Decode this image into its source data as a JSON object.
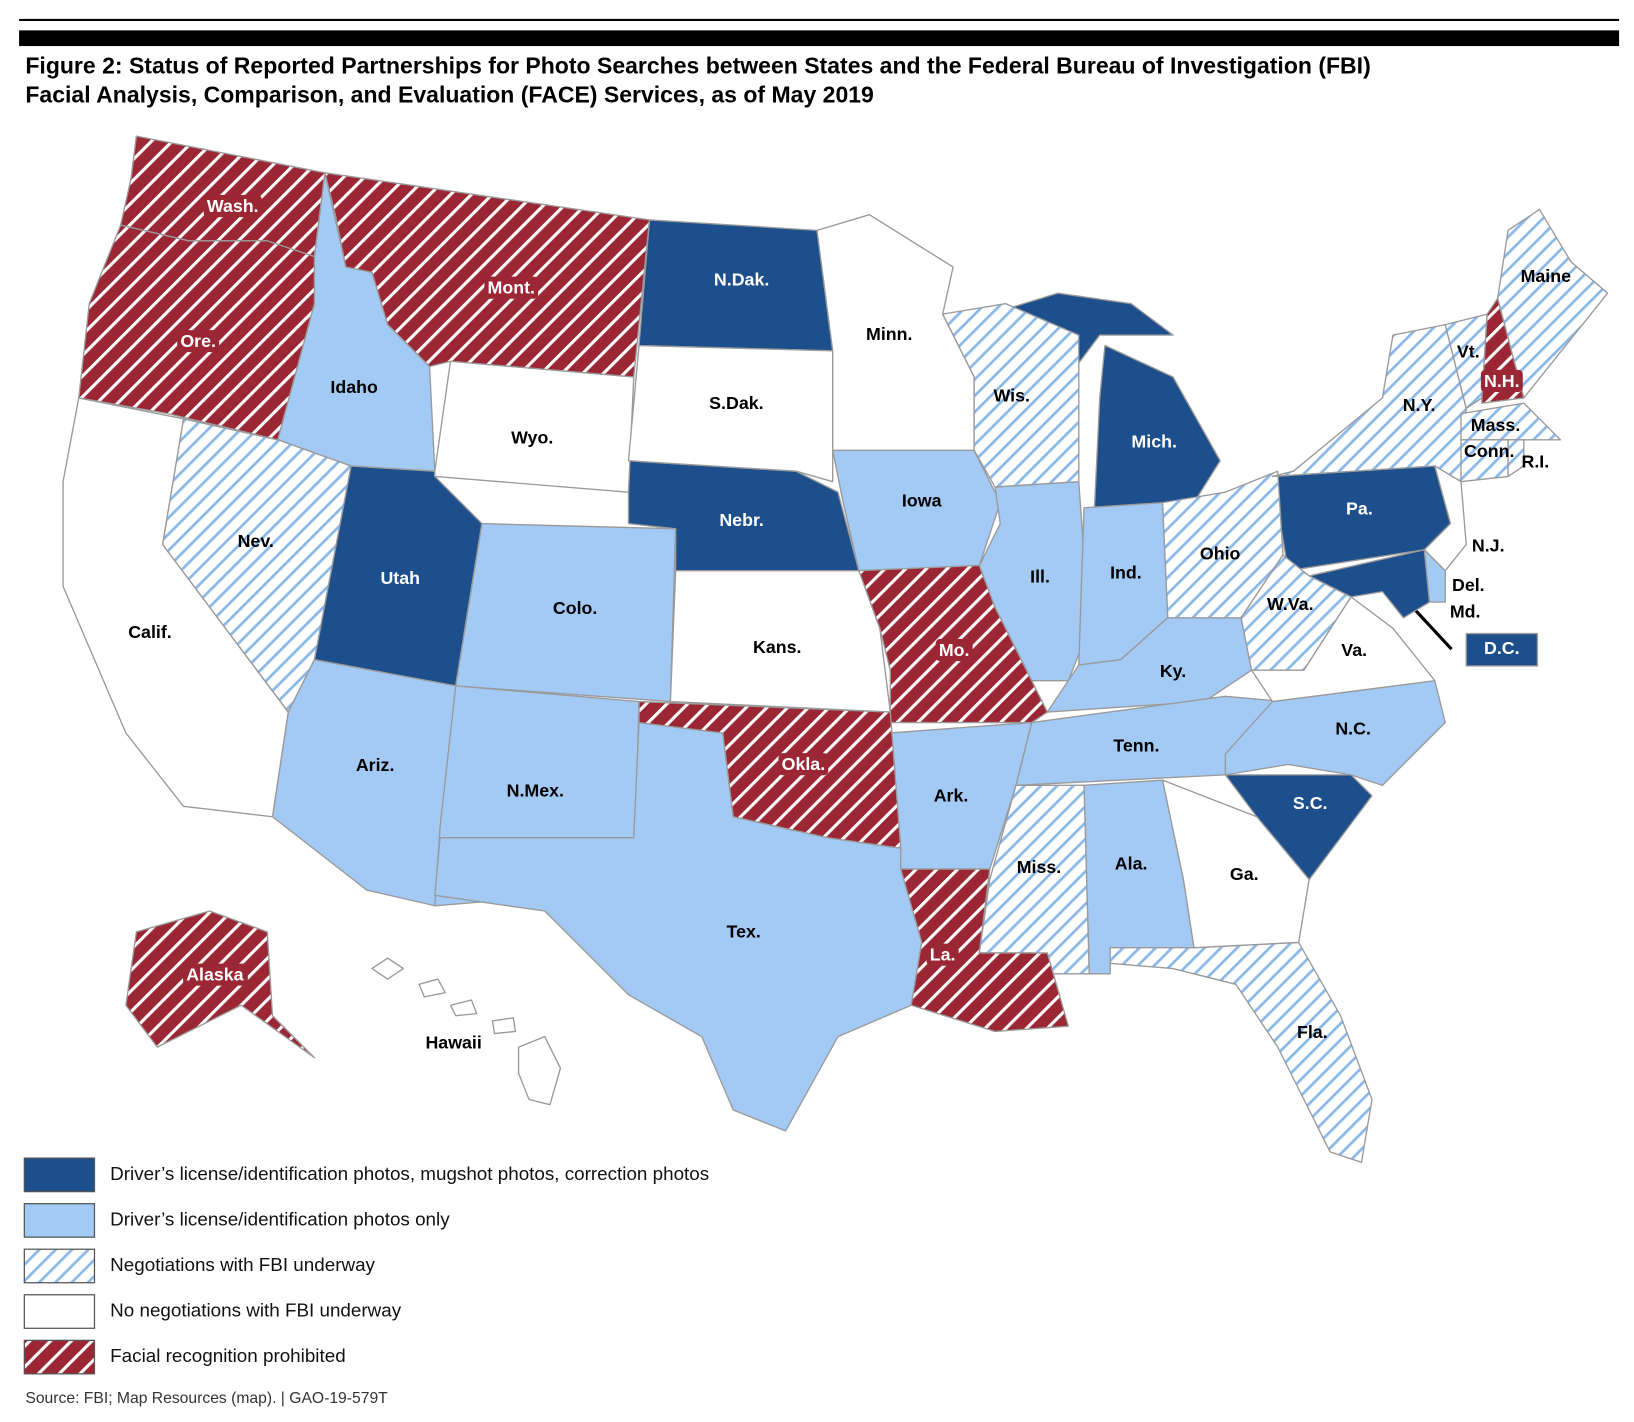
{
  "title": [
    "Figure 2: Status of Reported Partnerships for Photo Searches between States and the Federal Bureau of Investigation (FBI)",
    "Facial Analysis, Comparison, and Evaluation (FACE) Services, as of May 2019"
  ],
  "legend": [
    {
      "label": "Driver’s license/identification photos, mugshot photos, correction photos",
      "states": [
        "N.Dak.",
        "Nebr.",
        "Utah",
        "Mich.",
        "Pa.",
        "S.C.",
        "Md.",
        "D.C."
      ]
    },
    {
      "label": "Driver’s license/identification photos only",
      "states": [
        "Idaho",
        "Colo.",
        "Ariz.",
        "N.Mex.",
        "Tex.",
        "Iowa",
        "Ill.",
        "Ind.",
        "Ky.",
        "Tenn.",
        "Ark.",
        "Ala.",
        "N.C.",
        "Del."
      ]
    },
    {
      "label": "Negotiations with FBI underway",
      "states": [
        "Nev.",
        "Wis.",
        "Ohio",
        "W.Va.",
        "N.Y.",
        "Vt.",
        "Maine",
        "Mass.",
        "Conn.",
        "R.I.",
        "Miss.",
        "Fla."
      ]
    },
    {
      "label": "No negotiations with FBI underway",
      "states": [
        "Calif.",
        "Wyo.",
        "S.Dak.",
        "Minn.",
        "Kans.",
        "Va.",
        "Ga.",
        "N.J.",
        "Hawaii"
      ]
    },
    {
      "label": "Facial recognition prohibited",
      "states": [
        "Wash.",
        "Ore.",
        "Mont.",
        "Mo.",
        "Okla.",
        "La.",
        "N.H.",
        "Alaska"
      ]
    }
  ],
  "source": "Source: FBI; Map Resources (map).  |  GAO-19-579T"
}
